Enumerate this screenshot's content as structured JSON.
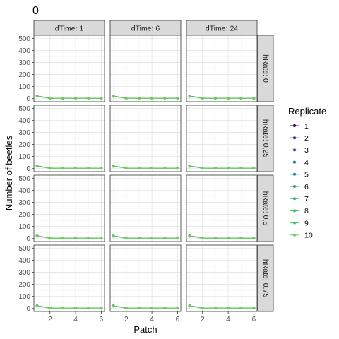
{
  "chart_data": {
    "type": "line",
    "title": "0",
    "xlabel": "Patch",
    "ylabel": "Number of beetles",
    "facet_cols": [
      "dTime: 1",
      "dTime: 6",
      "dTime: 24"
    ],
    "facet_rows": [
      "hRate: 0",
      "hRate: 0.25",
      "hRate: 0.5",
      "hRate: 0.75"
    ],
    "x": [
      1,
      2,
      3,
      4,
      5,
      6
    ],
    "xticks": [
      2,
      4,
      6
    ],
    "xlim": [
      0.75,
      6.25
    ],
    "yticks": [
      0,
      100,
      200,
      300,
      400,
      500
    ],
    "ylim": [
      -25,
      525
    ],
    "grid": true,
    "legend_title": "Replicate",
    "legend_position": "right",
    "series": [
      {
        "name": "1",
        "color": "#440154",
        "values": [
          22,
          4,
          4,
          4,
          4,
          4
        ]
      },
      {
        "name": "2",
        "color": "#482878",
        "values": [
          21,
          5,
          4,
          4,
          4,
          4
        ]
      },
      {
        "name": "3",
        "color": "#3e4989",
        "values": [
          20,
          4,
          4,
          4,
          4,
          4
        ]
      },
      {
        "name": "4",
        "color": "#31688e",
        "values": [
          21,
          4,
          4,
          4,
          4,
          4
        ]
      },
      {
        "name": "5",
        "color": "#26828e",
        "values": [
          20,
          5,
          4,
          4,
          4,
          4
        ]
      },
      {
        "name": "6",
        "color": "#1f9e89",
        "values": [
          21,
          4,
          4,
          4,
          4,
          4
        ]
      },
      {
        "name": "7",
        "color": "#35b779",
        "values": [
          20,
          4,
          4,
          4,
          4,
          4
        ]
      },
      {
        "name": "8",
        "color": "#3db66a",
        "values": [
          20,
          4,
          4,
          4,
          4,
          4
        ]
      },
      {
        "name": "9",
        "color": "#4ac16d",
        "values": [
          20,
          3,
          3,
          3,
          3,
          3
        ]
      },
      {
        "name": "10",
        "color": "#6ece58",
        "values": [
          20,
          3,
          3,
          3,
          3,
          3
        ]
      }
    ]
  }
}
